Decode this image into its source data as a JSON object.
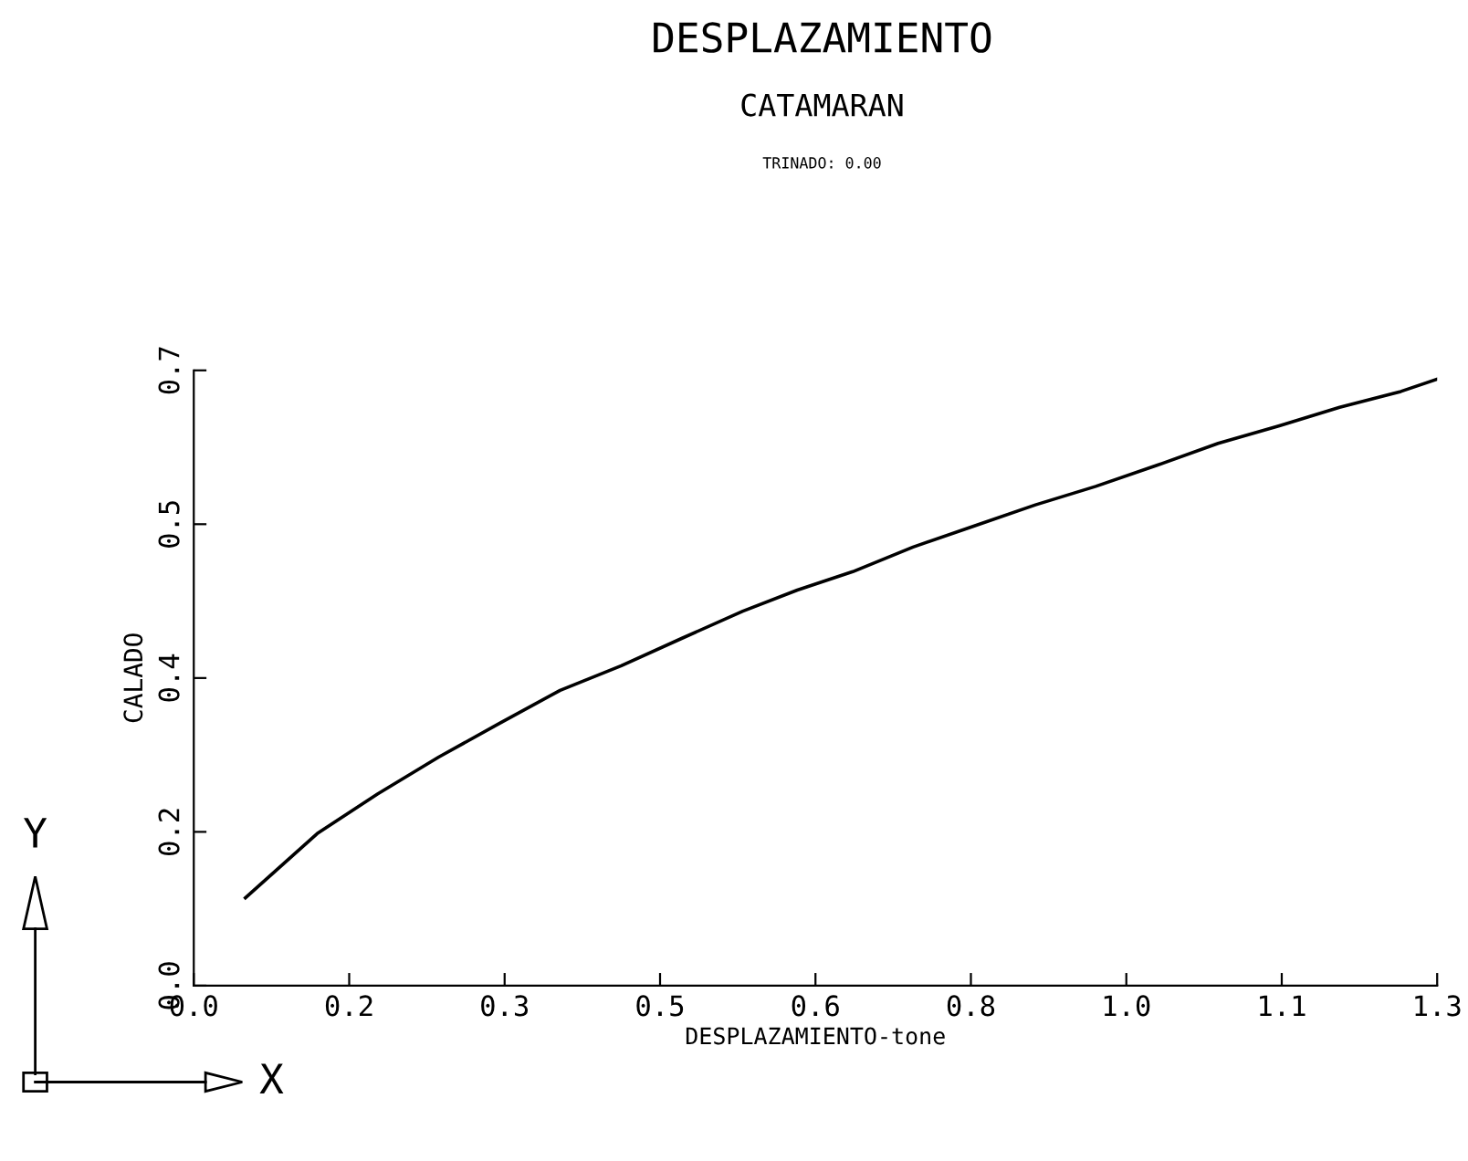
{
  "chart_data": {
    "type": "line",
    "title": "DESPLAZAMIENTO",
    "subtitle": "CATAMARAN",
    "annotations": [
      "TRINADO: 0.00",
      "Y",
      "X"
    ],
    "xlabel": "DESPLAZAMIENTO-tone",
    "ylabel": "CALADO",
    "x": [
      0.054,
      0.129,
      0.192,
      0.256,
      0.319,
      0.383,
      0.447,
      0.51,
      0.574,
      0.631,
      0.689,
      0.752,
      0.816,
      0.88,
      0.943,
      1.007,
      1.071,
      1.135,
      1.198,
      1.262,
      1.3
    ],
    "series": [
      {
        "color": "#000000",
        "values": [
          0.1,
          0.173,
          0.218,
          0.26,
          0.298,
          0.336,
          0.364,
          0.395,
          0.426,
          0.45,
          0.471,
          0.499,
          0.523,
          0.547,
          0.568,
          0.592,
          0.617,
          0.637,
          0.658,
          0.676,
          0.69
        ]
      }
    ],
    "xlim": [
      0,
      1.3
    ],
    "ylim": [
      0,
      0.7
    ],
    "xticks": [
      {
        "value": 0,
        "label": "0.0"
      },
      {
        "value": 0.1625,
        "label": "0.2"
      },
      {
        "value": 0.325,
        "label": "0.3"
      },
      {
        "value": 0.4875,
        "label": "0.5"
      },
      {
        "value": 0.65,
        "label": "0.6"
      },
      {
        "value": 0.8125,
        "label": "0.8"
      },
      {
        "value": 0.975,
        "label": "1.0"
      },
      {
        "value": 1.1375,
        "label": "1.1"
      },
      1.3
    ],
    "yticks": [
      {
        "value": 0,
        "label": "0.0"
      },
      {
        "value": 0.175,
        "label": "0.2"
      },
      {
        "value": 0.35,
        "label": "0.4"
      },
      {
        "value": 0.525,
        "label": "0.5"
      },
      0.7
    ],
    "grid": false,
    "legend": false,
    "marker": "none",
    "line_style": "solid"
  }
}
